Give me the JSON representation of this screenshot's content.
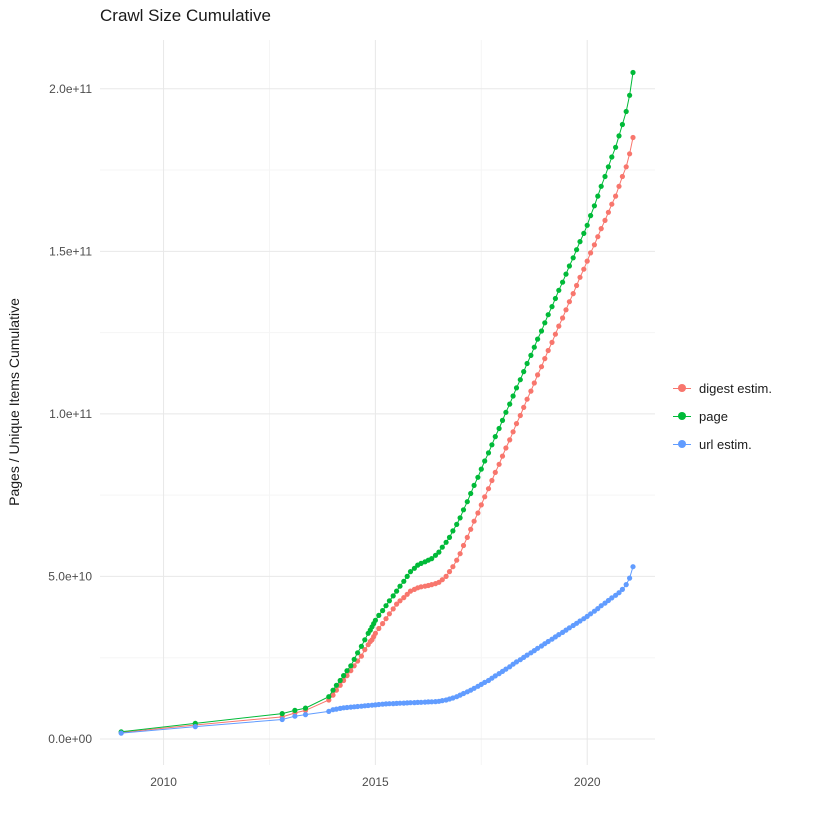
{
  "chart_data": {
    "type": "scatter",
    "title": "Crawl Size Cumulative",
    "xlabel": "",
    "ylabel": "Pages / Unique Items Cumulative",
    "y_unit": "1e9",
    "xlim": [
      2008.5,
      2021.6
    ],
    "ylim_billions": [
      -8,
      215
    ],
    "grid": "on",
    "legend_position": "right",
    "x_ticks": {
      "values": [
        2010,
        2015,
        2020
      ],
      "labels": [
        "2010",
        "2015",
        "2020"
      ]
    },
    "y_ticks": {
      "values": [
        0,
        50,
        100,
        150,
        200
      ],
      "labels": [
        "0.0e+00",
        "5.0e+10",
        "1.0e+11",
        "1.5e+11",
        "2.0e+11"
      ]
    },
    "x_minor": [
      2012.5,
      2017.5
    ],
    "y_minor": [
      25,
      75,
      125,
      175
    ],
    "colors": {
      "major_grid": "#e8e8e8",
      "minor_grid": "#f5f5f5",
      "axis_text": "#4d4d4d"
    },
    "series": [
      {
        "name": "digest estim.",
        "id": "digest-estim",
        "color": "#F8766D",
        "points": [
          [
            2009.0,
            2.0
          ],
          [
            2010.75,
            4.3
          ],
          [
            2012.8,
            6.8
          ],
          [
            2013.1,
            8.0
          ],
          [
            2013.35,
            8.8
          ],
          [
            2013.9,
            12
          ],
          [
            2014.0,
            13.5
          ],
          [
            2014.08,
            15
          ],
          [
            2014.17,
            16.5
          ],
          [
            2014.25,
            18
          ],
          [
            2014.33,
            19.5
          ],
          [
            2014.42,
            21
          ],
          [
            2014.5,
            22.5
          ],
          [
            2014.58,
            24
          ],
          [
            2014.67,
            25.5
          ],
          [
            2014.75,
            27.5
          ],
          [
            2014.83,
            29
          ],
          [
            2014.88,
            30
          ],
          [
            2014.92,
            30.5
          ],
          [
            2014.96,
            31.5
          ],
          [
            2015.0,
            32.5
          ],
          [
            2015.08,
            34
          ],
          [
            2015.17,
            35.5
          ],
          [
            2015.25,
            37
          ],
          [
            2015.33,
            38.5
          ],
          [
            2015.42,
            40
          ],
          [
            2015.5,
            41.5
          ],
          [
            2015.58,
            42.5
          ],
          [
            2015.67,
            43.5
          ],
          [
            2015.75,
            44.5
          ],
          [
            2015.83,
            45.5
          ],
          [
            2015.92,
            46
          ],
          [
            2016.0,
            46.5
          ],
          [
            2016.08,
            46.8
          ],
          [
            2016.17,
            47
          ],
          [
            2016.25,
            47.2
          ],
          [
            2016.33,
            47.5
          ],
          [
            2016.42,
            47.8
          ],
          [
            2016.5,
            48.2
          ],
          [
            2016.58,
            49
          ],
          [
            2016.67,
            50
          ],
          [
            2016.75,
            51.5
          ],
          [
            2016.83,
            53
          ],
          [
            2016.92,
            55
          ],
          [
            2017.0,
            57
          ],
          [
            2017.08,
            59.5
          ],
          [
            2017.17,
            62
          ],
          [
            2017.25,
            64.5
          ],
          [
            2017.33,
            67
          ],
          [
            2017.42,
            69.5
          ],
          [
            2017.5,
            72
          ],
          [
            2017.58,
            74.5
          ],
          [
            2017.67,
            77
          ],
          [
            2017.75,
            79.5
          ],
          [
            2017.83,
            82
          ],
          [
            2017.92,
            84.5
          ],
          [
            2018.0,
            87
          ],
          [
            2018.08,
            89.5
          ],
          [
            2018.17,
            92
          ],
          [
            2018.25,
            94.5
          ],
          [
            2018.33,
            97
          ],
          [
            2018.42,
            99.5
          ],
          [
            2018.5,
            102
          ],
          [
            2018.58,
            104.5
          ],
          [
            2018.67,
            107
          ],
          [
            2018.75,
            109.5
          ],
          [
            2018.83,
            112
          ],
          [
            2018.92,
            114.5
          ],
          [
            2019.0,
            117
          ],
          [
            2019.08,
            119.5
          ],
          [
            2019.17,
            122
          ],
          [
            2019.25,
            124.5
          ],
          [
            2019.33,
            127
          ],
          [
            2019.42,
            129.5
          ],
          [
            2019.5,
            132
          ],
          [
            2019.58,
            134.5
          ],
          [
            2019.67,
            137
          ],
          [
            2019.75,
            139.5
          ],
          [
            2019.83,
            142
          ],
          [
            2019.92,
            144.5
          ],
          [
            2020.0,
            147
          ],
          [
            2020.08,
            149.5
          ],
          [
            2020.17,
            152
          ],
          [
            2020.25,
            154.5
          ],
          [
            2020.33,
            157
          ],
          [
            2020.42,
            159.5
          ],
          [
            2020.5,
            162
          ],
          [
            2020.58,
            164.5
          ],
          [
            2020.67,
            167
          ],
          [
            2020.75,
            170
          ],
          [
            2020.83,
            173
          ],
          [
            2020.92,
            176
          ],
          [
            2021.0,
            180
          ],
          [
            2021.08,
            185
          ]
        ]
      },
      {
        "name": "page",
        "id": "page",
        "color": "#00BA38",
        "points": [
          [
            2009.0,
            2.2
          ],
          [
            2010.75,
            4.8
          ],
          [
            2012.8,
            7.8
          ],
          [
            2013.1,
            8.8
          ],
          [
            2013.35,
            9.5
          ],
          [
            2013.9,
            13
          ],
          [
            2014.0,
            15
          ],
          [
            2014.08,
            16.5
          ],
          [
            2014.17,
            18
          ],
          [
            2014.25,
            19.5
          ],
          [
            2014.33,
            21
          ],
          [
            2014.42,
            22.5
          ],
          [
            2014.5,
            24.5
          ],
          [
            2014.58,
            26.5
          ],
          [
            2014.67,
            28.5
          ],
          [
            2014.75,
            30.5
          ],
          [
            2014.83,
            32.5
          ],
          [
            2014.88,
            33.5
          ],
          [
            2014.92,
            34.5
          ],
          [
            2014.96,
            35.5
          ],
          [
            2015.0,
            36.5
          ],
          [
            2015.08,
            38
          ],
          [
            2015.17,
            39.5
          ],
          [
            2015.25,
            41
          ],
          [
            2015.33,
            42.5
          ],
          [
            2015.42,
            44
          ],
          [
            2015.5,
            45.5
          ],
          [
            2015.58,
            47
          ],
          [
            2015.67,
            48.5
          ],
          [
            2015.75,
            50
          ],
          [
            2015.83,
            51.5
          ],
          [
            2015.92,
            52.5
          ],
          [
            2016.0,
            53.5
          ],
          [
            2016.08,
            54
          ],
          [
            2016.17,
            54.5
          ],
          [
            2016.25,
            55
          ],
          [
            2016.33,
            55.5
          ],
          [
            2016.42,
            56.5
          ],
          [
            2016.5,
            57.5
          ],
          [
            2016.58,
            59
          ],
          [
            2016.67,
            60.5
          ],
          [
            2016.75,
            62
          ],
          [
            2016.83,
            64
          ],
          [
            2016.92,
            66
          ],
          [
            2017.0,
            68
          ],
          [
            2017.08,
            70.5
          ],
          [
            2017.17,
            73
          ],
          [
            2017.25,
            75.5
          ],
          [
            2017.33,
            78
          ],
          [
            2017.42,
            80.5
          ],
          [
            2017.5,
            83
          ],
          [
            2017.58,
            85.5
          ],
          [
            2017.67,
            88
          ],
          [
            2017.75,
            90.5
          ],
          [
            2017.83,
            93
          ],
          [
            2017.92,
            95.5
          ],
          [
            2018.0,
            98
          ],
          [
            2018.08,
            100.5
          ],
          [
            2018.17,
            103
          ],
          [
            2018.25,
            105.5
          ],
          [
            2018.33,
            108
          ],
          [
            2018.42,
            110.5
          ],
          [
            2018.5,
            113
          ],
          [
            2018.58,
            115.5
          ],
          [
            2018.67,
            118
          ],
          [
            2018.75,
            120.5
          ],
          [
            2018.83,
            123
          ],
          [
            2018.92,
            125.5
          ],
          [
            2019.0,
            128
          ],
          [
            2019.08,
            130.5
          ],
          [
            2019.17,
            133
          ],
          [
            2019.25,
            135.5
          ],
          [
            2019.33,
            138
          ],
          [
            2019.42,
            140.5
          ],
          [
            2019.5,
            143
          ],
          [
            2019.58,
            145.5
          ],
          [
            2019.67,
            148
          ],
          [
            2019.75,
            150.5
          ],
          [
            2019.83,
            153
          ],
          [
            2019.92,
            155.5
          ],
          [
            2020.0,
            158
          ],
          [
            2020.08,
            161
          ],
          [
            2020.17,
            164
          ],
          [
            2020.25,
            167
          ],
          [
            2020.33,
            170
          ],
          [
            2020.42,
            173
          ],
          [
            2020.5,
            176
          ],
          [
            2020.58,
            179
          ],
          [
            2020.67,
            182
          ],
          [
            2020.75,
            185.5
          ],
          [
            2020.83,
            189
          ],
          [
            2020.92,
            193
          ],
          [
            2021.0,
            198
          ],
          [
            2021.08,
            205
          ]
        ]
      },
      {
        "name": "url estim.",
        "id": "url-estim",
        "color": "#619CFF",
        "points": [
          [
            2009.0,
            1.8
          ],
          [
            2010.75,
            3.8
          ],
          [
            2012.8,
            6.0
          ],
          [
            2013.1,
            7.0
          ],
          [
            2013.35,
            7.5
          ],
          [
            2013.9,
            8.5
          ],
          [
            2014.0,
            9.0
          ],
          [
            2014.08,
            9.2
          ],
          [
            2014.17,
            9.4
          ],
          [
            2014.25,
            9.6
          ],
          [
            2014.33,
            9.7
          ],
          [
            2014.42,
            9.8
          ],
          [
            2014.5,
            9.9
          ],
          [
            2014.58,
            10.0
          ],
          [
            2014.67,
            10.1
          ],
          [
            2014.75,
            10.2
          ],
          [
            2014.83,
            10.3
          ],
          [
            2014.92,
            10.4
          ],
          [
            2015.0,
            10.5
          ],
          [
            2015.08,
            10.6
          ],
          [
            2015.17,
            10.7
          ],
          [
            2015.25,
            10.8
          ],
          [
            2015.33,
            10.85
          ],
          [
            2015.42,
            10.9
          ],
          [
            2015.5,
            10.95
          ],
          [
            2015.58,
            11.0
          ],
          [
            2015.67,
            11.05
          ],
          [
            2015.75,
            11.1
          ],
          [
            2015.83,
            11.15
          ],
          [
            2015.92,
            11.2
          ],
          [
            2016.0,
            11.25
          ],
          [
            2016.08,
            11.3
          ],
          [
            2016.17,
            11.35
          ],
          [
            2016.25,
            11.4
          ],
          [
            2016.33,
            11.45
          ],
          [
            2016.42,
            11.5
          ],
          [
            2016.5,
            11.6
          ],
          [
            2016.58,
            11.8
          ],
          [
            2016.67,
            12.0
          ],
          [
            2016.75,
            12.3
          ],
          [
            2016.83,
            12.6
          ],
          [
            2016.92,
            13.0
          ],
          [
            2017.0,
            13.5
          ],
          [
            2017.08,
            14.0
          ],
          [
            2017.17,
            14.5
          ],
          [
            2017.25,
            15.0
          ],
          [
            2017.33,
            15.6
          ],
          [
            2017.42,
            16.2
          ],
          [
            2017.5,
            16.8
          ],
          [
            2017.58,
            17.4
          ],
          [
            2017.67,
            18.0
          ],
          [
            2017.75,
            18.7
          ],
          [
            2017.83,
            19.4
          ],
          [
            2017.92,
            20.1
          ],
          [
            2018.0,
            20.8
          ],
          [
            2018.08,
            21.5
          ],
          [
            2018.17,
            22.2
          ],
          [
            2018.25,
            23.0
          ],
          [
            2018.33,
            23.7
          ],
          [
            2018.42,
            24.4
          ],
          [
            2018.5,
            25.1
          ],
          [
            2018.58,
            25.8
          ],
          [
            2018.67,
            26.5
          ],
          [
            2018.75,
            27.2
          ],
          [
            2018.83,
            27.9
          ],
          [
            2018.92,
            28.6
          ],
          [
            2019.0,
            29.3
          ],
          [
            2019.08,
            30.0
          ],
          [
            2019.17,
            30.7
          ],
          [
            2019.25,
            31.4
          ],
          [
            2019.33,
            32.1
          ],
          [
            2019.42,
            32.8
          ],
          [
            2019.5,
            33.5
          ],
          [
            2019.58,
            34.2
          ],
          [
            2019.67,
            34.9
          ],
          [
            2019.75,
            35.6
          ],
          [
            2019.83,
            36.3
          ],
          [
            2019.92,
            37.0
          ],
          [
            2020.0,
            37.7
          ],
          [
            2020.08,
            38.5
          ],
          [
            2020.17,
            39.3
          ],
          [
            2020.25,
            40.1
          ],
          [
            2020.33,
            41.0
          ],
          [
            2020.42,
            41.8
          ],
          [
            2020.5,
            42.6
          ],
          [
            2020.58,
            43.4
          ],
          [
            2020.67,
            44.2
          ],
          [
            2020.75,
            45.0
          ],
          [
            2020.83,
            46.0
          ],
          [
            2020.92,
            47.5
          ],
          [
            2021.0,
            49.5
          ],
          [
            2021.08,
            53.0
          ]
        ]
      }
    ]
  }
}
